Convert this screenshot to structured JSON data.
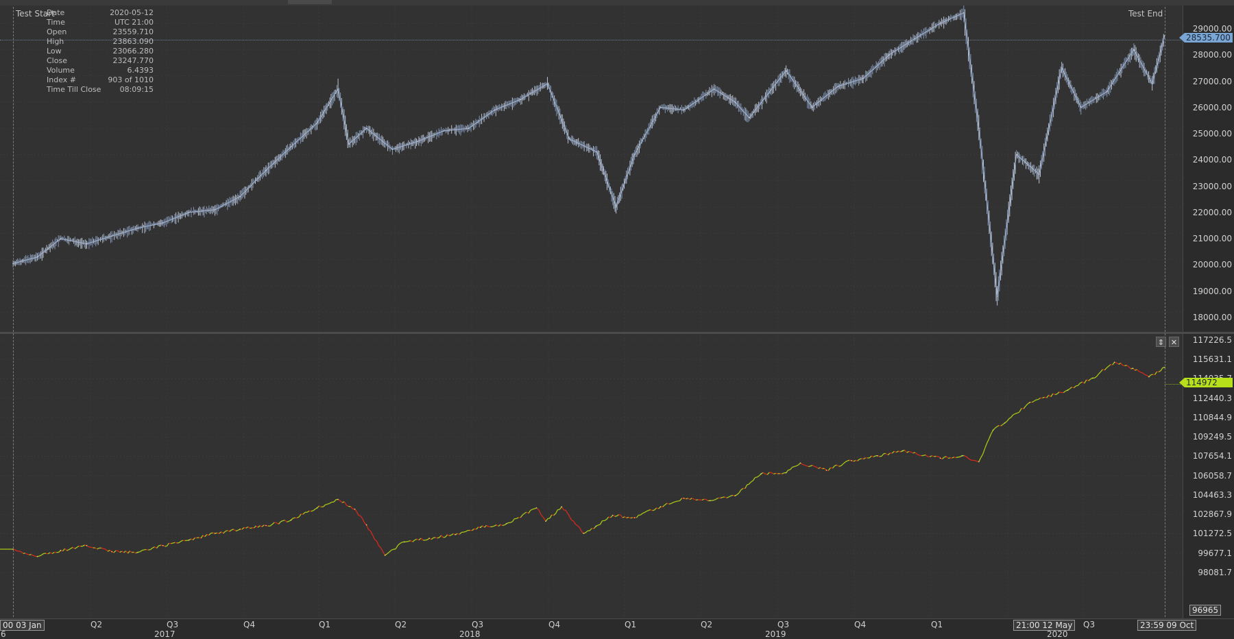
{
  "info_panel": {
    "rows": [
      {
        "key": "Date",
        "value": "2020-05-12"
      },
      {
        "key": "Time",
        "value": "UTC 21:00"
      },
      {
        "key": "Open",
        "value": "23559.710"
      },
      {
        "key": "High",
        "value": "23863.090"
      },
      {
        "key": "Low",
        "value": "23066.280"
      },
      {
        "key": "Close",
        "value": "23247.770"
      },
      {
        "key": "Volume",
        "value": "6.4393"
      },
      {
        "key": "Index #",
        "value": "903 of 1010"
      },
      {
        "key": "Time Till Close",
        "value": "08:09:15"
      }
    ]
  },
  "markers": {
    "test_start": "Test Start",
    "test_end": "Test End"
  },
  "price_panel": {
    "axis_ticks": [
      "29000.00",
      "28000.00",
      "27000.00",
      "26000.00",
      "25000.00",
      "24000.00",
      "23000.00",
      "22000.00",
      "21000.00",
      "20000.00",
      "19000.00",
      "18000.00"
    ],
    "current_value": "28535.700",
    "current_color": "#7aa6d6"
  },
  "equity_panel": {
    "axis_ticks": [
      "117226.5",
      "115631.1",
      "114035.7",
      "112440.3",
      "110844.9",
      "109249.5",
      "107654.1",
      "106058.7",
      "104463.3",
      "102867.9",
      "101272.5",
      "99677.1",
      "98081.7"
    ],
    "bottom_label": "96965",
    "current_value": "114972",
    "current_color": "#b8e01a",
    "up_color": "#a8c818",
    "down_color": "#d42b1e"
  },
  "time_axis": {
    "quarters": [
      "Q2",
      "Q3",
      "Q4",
      "Q1",
      "Q2",
      "Q3",
      "Q4",
      "Q1",
      "Q2",
      "Q3",
      "Q4",
      "Q1",
      "Q3"
    ],
    "years": [
      "2017",
      "2018",
      "2019",
      "2020"
    ],
    "left_edge_digit": "6",
    "start_label": "00 03 Jan",
    "cursor_label": "21:00 12 May",
    "end_label": "23:59 09 Oct"
  },
  "chart_data": [
    {
      "type": "line",
      "title": "",
      "xlabel": "",
      "ylabel": "",
      "ylim": [
        18000,
        29500
      ],
      "x": [
        "2017-01-03",
        "2017-02-01",
        "2017-03-01",
        "2017-04-01",
        "2017-05-01",
        "2017-06-01",
        "2017-07-01",
        "2017-08-01",
        "2017-09-01",
        "2017-10-01",
        "2017-11-01",
        "2017-12-01",
        "2018-01-01",
        "2018-01-26",
        "2018-02-08",
        "2018-03-01",
        "2018-04-01",
        "2018-05-01",
        "2018-06-01",
        "2018-07-01",
        "2018-08-01",
        "2018-09-01",
        "2018-10-03",
        "2018-10-29",
        "2018-12-01",
        "2018-12-24",
        "2019-01-15",
        "2019-02-15",
        "2019-03-15",
        "2019-04-20",
        "2019-05-15",
        "2019-06-01",
        "2019-07-15",
        "2019-08-15",
        "2019-09-15",
        "2019-10-15",
        "2019-11-15",
        "2019-12-15",
        "2020-01-15",
        "2020-02-12",
        "2020-03-01",
        "2020-03-23",
        "2020-04-15",
        "2020-05-12",
        "2020-06-08",
        "2020-07-01",
        "2020-08-01",
        "2020-09-02",
        "2020-09-24",
        "2020-10-09"
      ],
      "series": [
        {
          "values": [
            19850,
            20100,
            20800,
            20600,
            20900,
            21200,
            21400,
            21800,
            21900,
            22400,
            23400,
            24300,
            25200,
            26500,
            24400,
            25000,
            24200,
            24500,
            24900,
            25000,
            25700,
            26100,
            26700,
            24600,
            24100,
            22000,
            24000,
            25800,
            25700,
            26500,
            26000,
            25400,
            27200,
            25800,
            26600,
            26900,
            27800,
            28400,
            29000,
            29400,
            25000,
            18600,
            24000,
            23250,
            27300,
            25800,
            26400,
            28000,
            26700,
            28535
          ]
        }
      ]
    },
    {
      "type": "line",
      "title": "",
      "xlabel": "",
      "ylabel": "",
      "ylim": [
        96965,
        117800
      ],
      "x": [
        "2017-01-03",
        "2017-02-01",
        "2017-03-01",
        "2017-04-01",
        "2017-05-01",
        "2017-06-01",
        "2017-07-01",
        "2017-08-01",
        "2017-09-01",
        "2017-10-01",
        "2017-11-01",
        "2017-12-01",
        "2018-01-01",
        "2018-01-26",
        "2018-02-15",
        "2018-03-01",
        "2018-03-23",
        "2018-04-15",
        "2018-05-15",
        "2018-06-15",
        "2018-07-15",
        "2018-08-15",
        "2018-09-20",
        "2018-10-01",
        "2018-10-20",
        "2018-11-15",
        "2018-11-30",
        "2018-12-20",
        "2019-01-15",
        "2019-02-15",
        "2019-03-15",
        "2019-04-15",
        "2019-05-15",
        "2019-06-15",
        "2019-07-15",
        "2019-08-01",
        "2019-09-01",
        "2019-10-01",
        "2019-11-01",
        "2019-12-01",
        "2020-01-15",
        "2020-02-10",
        "2020-03-01",
        "2020-03-18",
        "2020-04-01",
        "2020-05-01",
        "2020-06-15",
        "2020-07-15",
        "2020-08-10",
        "2020-09-01",
        "2020-09-20",
        "2020-10-09"
      ],
      "series": [
        {
          "values": [
            100000,
            99400,
            99900,
            100300,
            99800,
            99750,
            100300,
            100750,
            101300,
            101650,
            101950,
            102400,
            103400,
            104100,
            103300,
            102000,
            99500,
            100600,
            100900,
            101200,
            101800,
            102100,
            103400,
            102300,
            103500,
            101300,
            101900,
            102800,
            102600,
            103500,
            104200,
            104000,
            104400,
            106200,
            106300,
            107100,
            106500,
            107300,
            107700,
            108100,
            107500,
            107700,
            107200,
            109800,
            110400,
            112100,
            113100,
            114100,
            115400,
            114900,
            114200,
            114972
          ]
        }
      ]
    }
  ]
}
